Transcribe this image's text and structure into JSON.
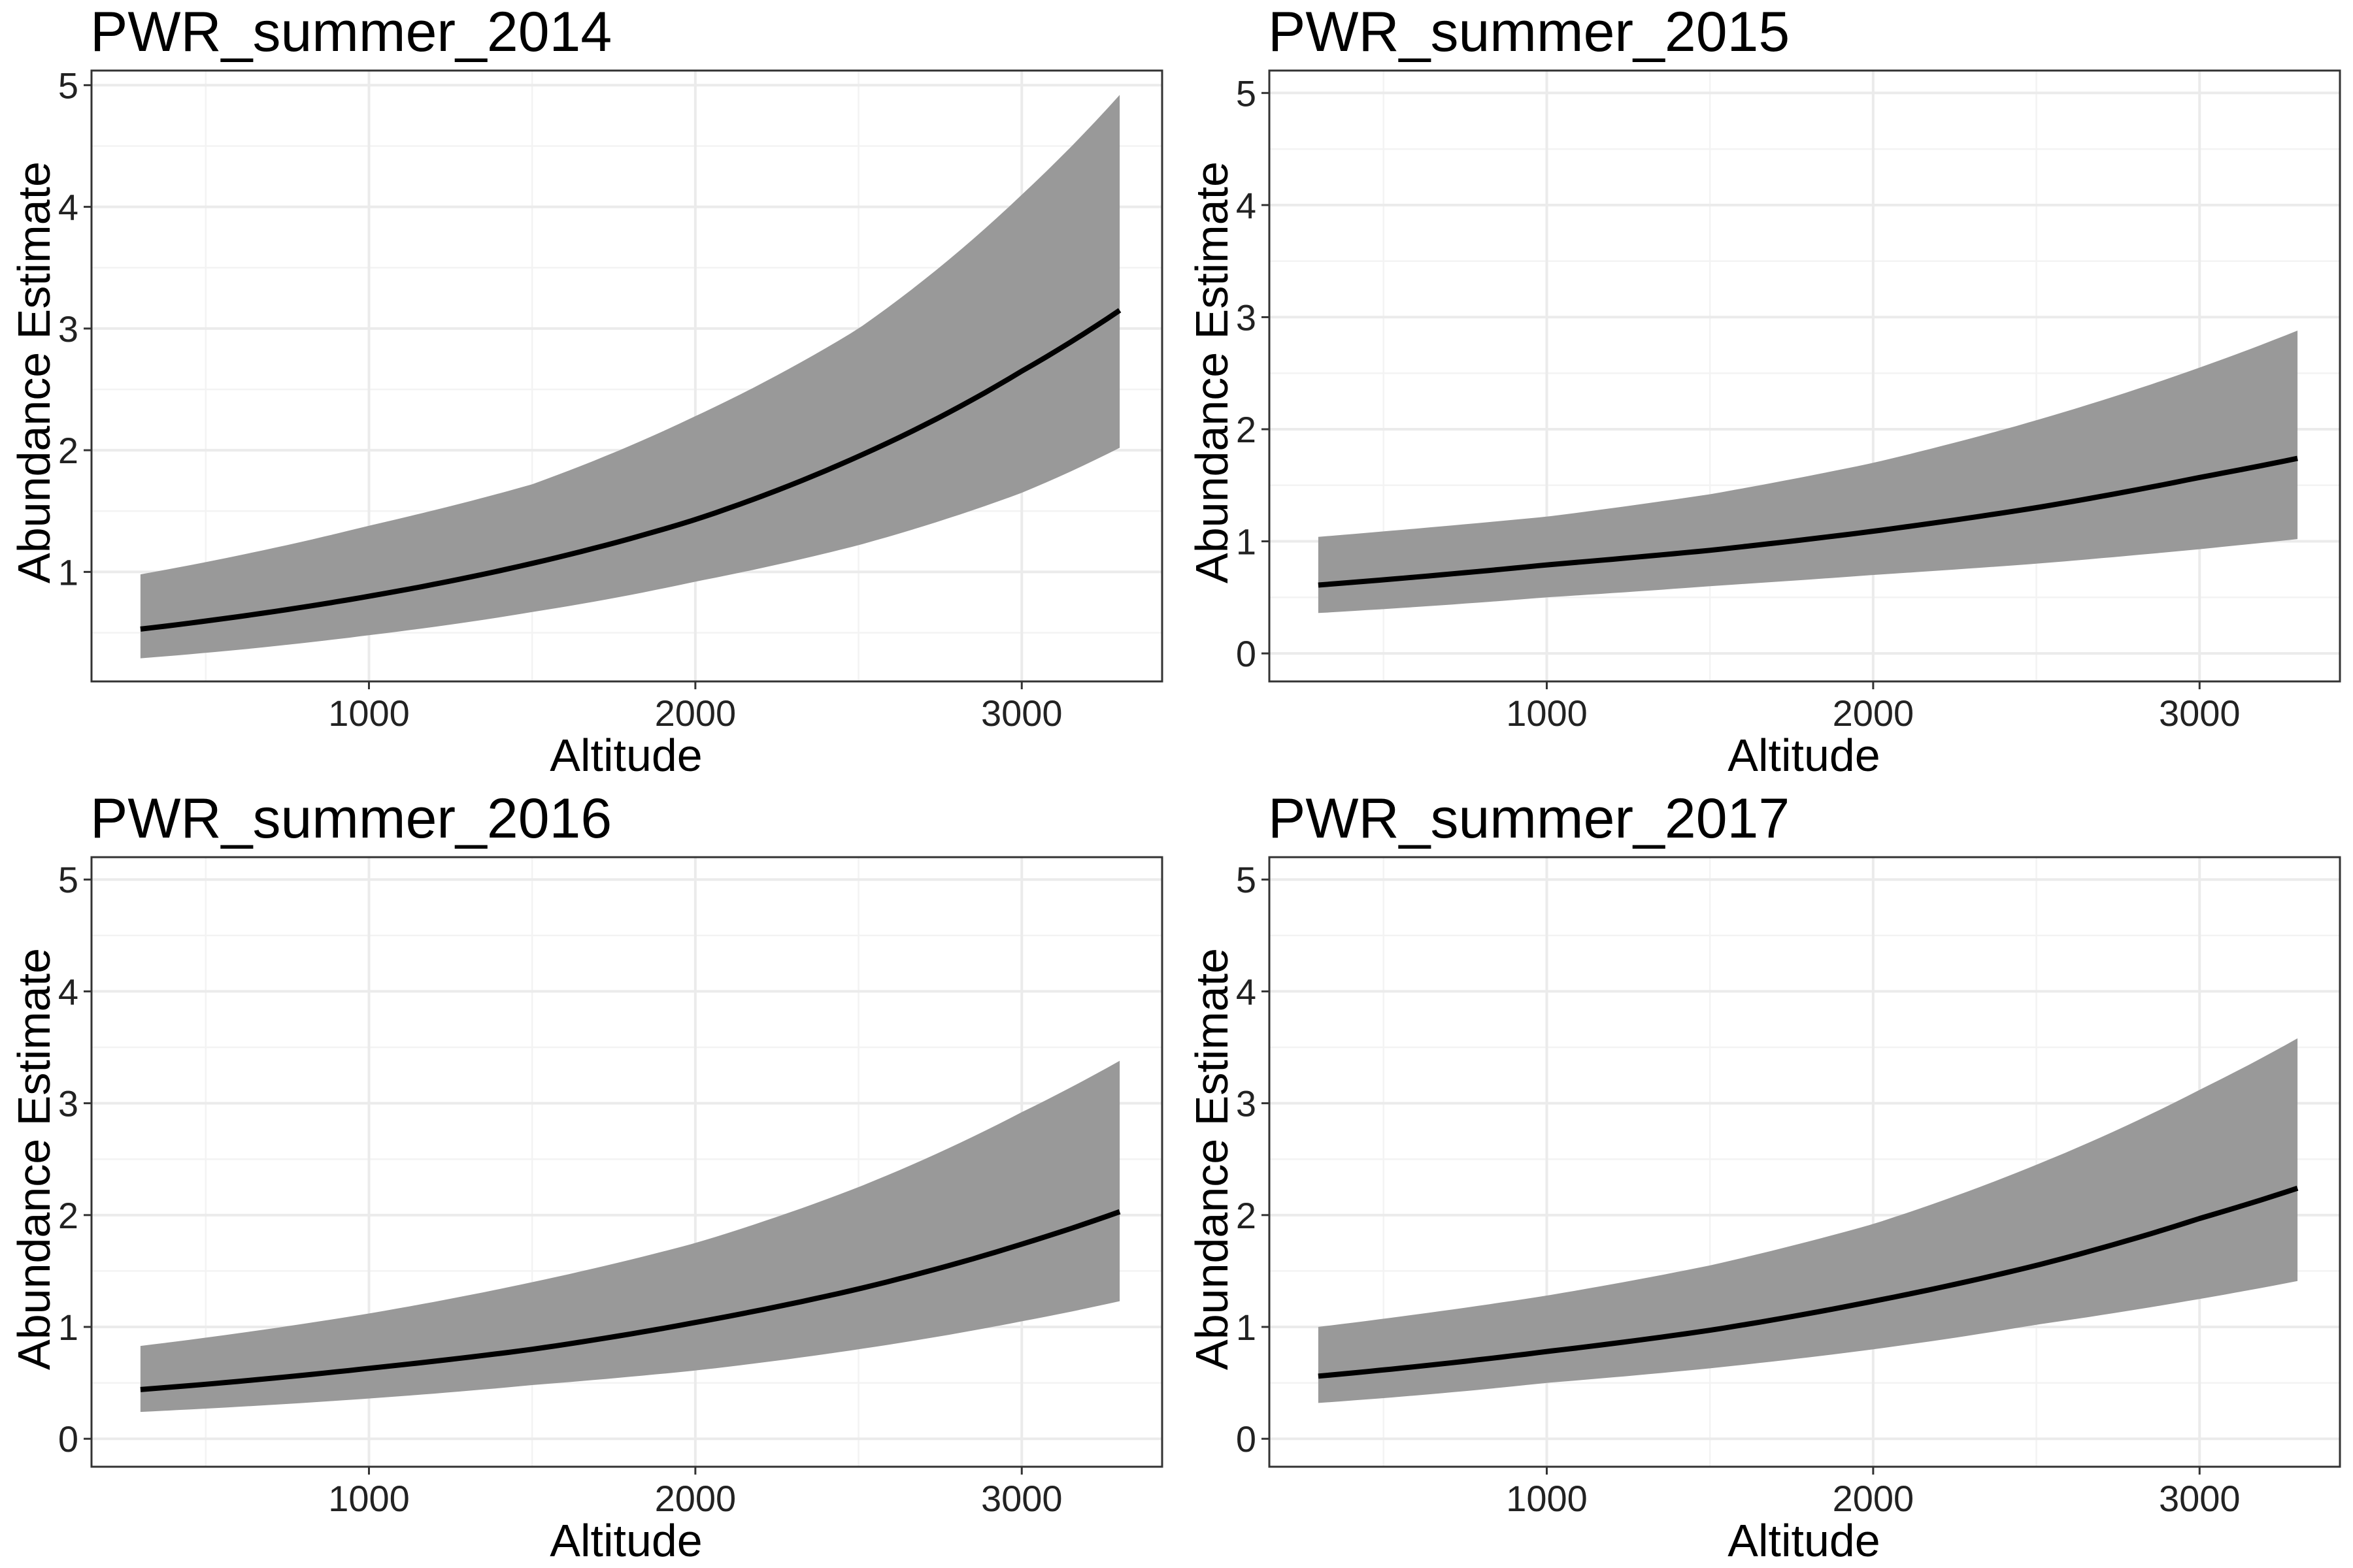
{
  "colors": {
    "background": "#ffffff",
    "panel_border": "#333333",
    "grid_major": "#ebebeb",
    "grid_minor": "#f3f3f3",
    "ribbon": "#999999",
    "line": "#000000",
    "text": "#000000",
    "tick_text": "#222222"
  },
  "chart_data": [
    {
      "type": "area",
      "title": "PWR_summer_2014",
      "xlabel": "Altitude",
      "ylabel": "Abundance Estimate",
      "xlim": [
        150,
        3430
      ],
      "ylim": [
        0.1,
        5.12
      ],
      "x_ticks": [
        1000,
        2000,
        3000
      ],
      "x_tick_labels": [
        "1000",
        "2000",
        "3000"
      ],
      "y_ticks": [
        1,
        2,
        3,
        4,
        5
      ],
      "y_tick_labels": [
        "1",
        "2",
        "3",
        "4",
        "5"
      ],
      "grid": true,
      "x": [
        300,
        1000,
        1500,
        2000,
        2500,
        3000,
        3300
      ],
      "series": [
        {
          "role": "estimate",
          "values": [
            0.53,
            0.8,
            1.07,
            1.43,
            1.95,
            2.65,
            3.15
          ]
        },
        {
          "role": "ci_lower",
          "values": [
            0.29,
            0.48,
            0.67,
            0.92,
            1.22,
            1.65,
            2.02
          ]
        },
        {
          "role": "ci_upper",
          "values": [
            0.98,
            1.38,
            1.72,
            2.28,
            3.0,
            4.1,
            4.92
          ]
        }
      ]
    },
    {
      "type": "area",
      "title": "PWR_summer_2015",
      "xlabel": "Altitude",
      "ylabel": "Abundance Estimate",
      "xlim": [
        150,
        3430
      ],
      "ylim": [
        -0.25,
        5.2
      ],
      "x_ticks": [
        1000,
        2000,
        3000
      ],
      "x_tick_labels": [
        "1000",
        "2000",
        "3000"
      ],
      "y_ticks": [
        0,
        1,
        2,
        3,
        4,
        5
      ],
      "y_tick_labels": [
        "0",
        "1",
        "2",
        "3",
        "4",
        "5"
      ],
      "grid": true,
      "x": [
        300,
        1000,
        1500,
        2000,
        2500,
        3000,
        3300
      ],
      "series": [
        {
          "role": "estimate",
          "values": [
            0.61,
            0.79,
            0.92,
            1.09,
            1.3,
            1.57,
            1.74
          ]
        },
        {
          "role": "ci_lower",
          "values": [
            0.36,
            0.5,
            0.6,
            0.7,
            0.8,
            0.93,
            1.02
          ]
        },
        {
          "role": "ci_upper",
          "values": [
            1.04,
            1.22,
            1.42,
            1.7,
            2.08,
            2.55,
            2.88
          ]
        }
      ]
    },
    {
      "type": "area",
      "title": "PWR_summer_2016",
      "xlabel": "Altitude",
      "ylabel": "Abundance Estimate",
      "xlim": [
        150,
        3430
      ],
      "ylim": [
        -0.25,
        5.2
      ],
      "x_ticks": [
        1000,
        2000,
        3000
      ],
      "x_tick_labels": [
        "1000",
        "2000",
        "3000"
      ],
      "y_ticks": [
        0,
        1,
        2,
        3,
        4,
        5
      ],
      "y_tick_labels": [
        "0",
        "1",
        "2",
        "3",
        "4",
        "5"
      ],
      "grid": true,
      "x": [
        300,
        1000,
        1500,
        2000,
        2500,
        3000,
        3300
      ],
      "series": [
        {
          "role": "estimate",
          "values": [
            0.44,
            0.63,
            0.8,
            1.04,
            1.34,
            1.74,
            2.03
          ]
        },
        {
          "role": "ci_lower",
          "values": [
            0.24,
            0.36,
            0.48,
            0.61,
            0.8,
            1.05,
            1.23
          ]
        },
        {
          "role": "ci_upper",
          "values": [
            0.83,
            1.12,
            1.4,
            1.75,
            2.25,
            2.92,
            3.38
          ]
        }
      ]
    },
    {
      "type": "area",
      "title": "PWR_summer_2017",
      "xlabel": "Altitude",
      "ylabel": "Abundance Estimate",
      "xlim": [
        150,
        3430
      ],
      "ylim": [
        -0.25,
        5.2
      ],
      "x_ticks": [
        1000,
        2000,
        3000
      ],
      "x_tick_labels": [
        "1000",
        "2000",
        "3000"
      ],
      "y_ticks": [
        0,
        1,
        2,
        3,
        4,
        5
      ],
      "y_tick_labels": [
        "0",
        "1",
        "2",
        "3",
        "4",
        "5"
      ],
      "grid": true,
      "x": [
        300,
        1000,
        1500,
        2000,
        2500,
        3000,
        3300
      ],
      "series": [
        {
          "role": "estimate",
          "values": [
            0.56,
            0.78,
            0.97,
            1.23,
            1.55,
            1.97,
            2.24
          ]
        },
        {
          "role": "ci_lower",
          "values": [
            0.32,
            0.5,
            0.63,
            0.8,
            1.02,
            1.25,
            1.41
          ]
        },
        {
          "role": "ci_upper",
          "values": [
            1.0,
            1.28,
            1.55,
            1.92,
            2.45,
            3.12,
            3.58
          ]
        }
      ]
    }
  ]
}
